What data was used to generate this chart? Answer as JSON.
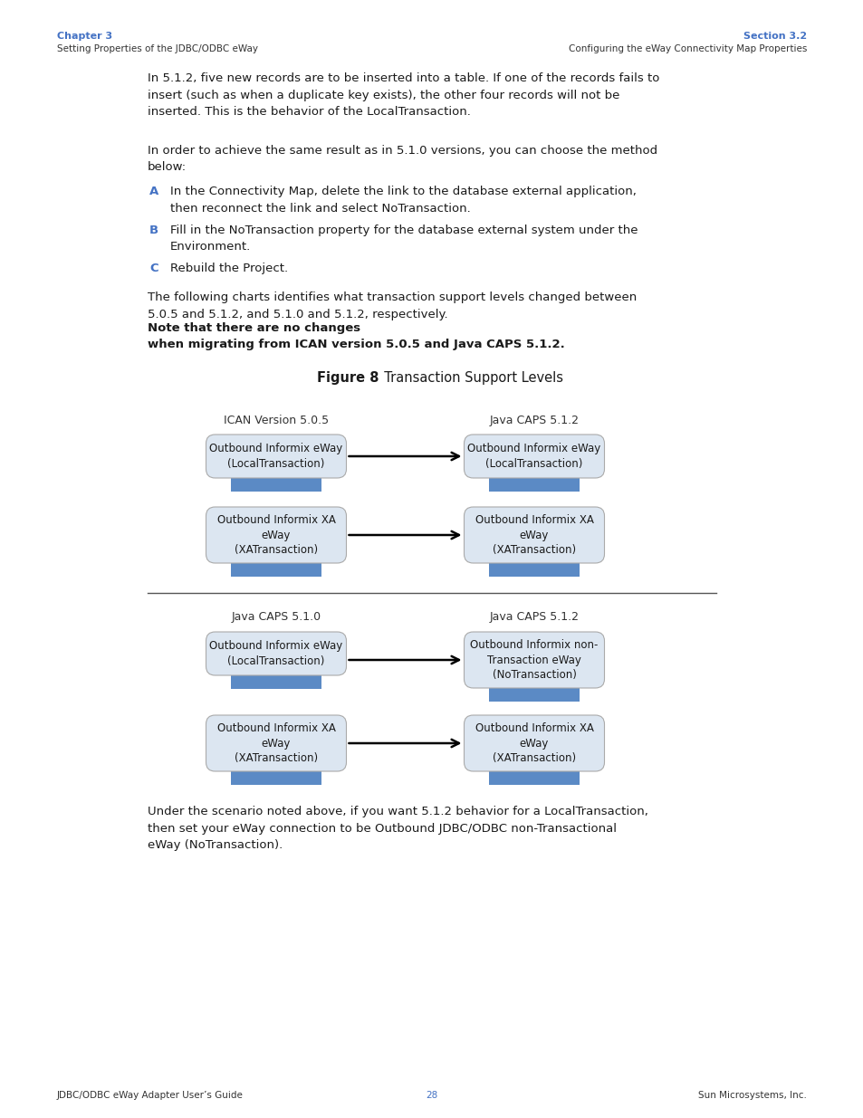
{
  "page_bg": "#ffffff",
  "header_left_bold": "Chapter 3",
  "header_left_normal": "Setting Properties of the JDBC/ODBC eWay",
  "header_right_bold": "Section 3.2",
  "header_right_normal": "Configuring the eWay Connectivity Map Properties",
  "header_color": "#4472c4",
  "figure_label": "Figure 8",
  "figure_title": "   Transaction Support Levels",
  "diagram_top_left_title": "ICAN Version 5.0.5",
  "diagram_top_right_title": "Java CAPS 5.1.2",
  "diagram_bottom_left_title": "Java CAPS 5.1.0",
  "diagram_bottom_right_title": "Java CAPS 5.1.2",
  "box_fill": "#dce6f1",
  "box_edge_fill": "#5b8ac5",
  "box_border": "#aaaaaa",
  "box_texts": {
    "top_left_top": "Outbound Informix eWay\n(LocalTransaction)",
    "top_left_bot": "Outbound Informix XA\neWay\n(XATransaction)",
    "top_right_top": "Outbound Informix eWay\n(LocalTransaction)",
    "top_right_bot": "Outbound Informix XA\neWay\n(XATransaction)",
    "bot_left_top": "Outbound Informix eWay\n(LocalTransaction)",
    "bot_left_bot": "Outbound Informix XA\neWay\n(XATransaction)",
    "bot_right_top": "Outbound Informix non-\nTransaction eWay\n(NoTransaction)",
    "bot_right_bot": "Outbound Informix XA\neWay\n(XATransaction)"
  },
  "footer_left": "JDBC/ODBC eWay Adapter User’s Guide",
  "footer_center": "28",
  "footer_right": "Sun Microsystems, Inc.",
  "footer_color": "#4472c4"
}
